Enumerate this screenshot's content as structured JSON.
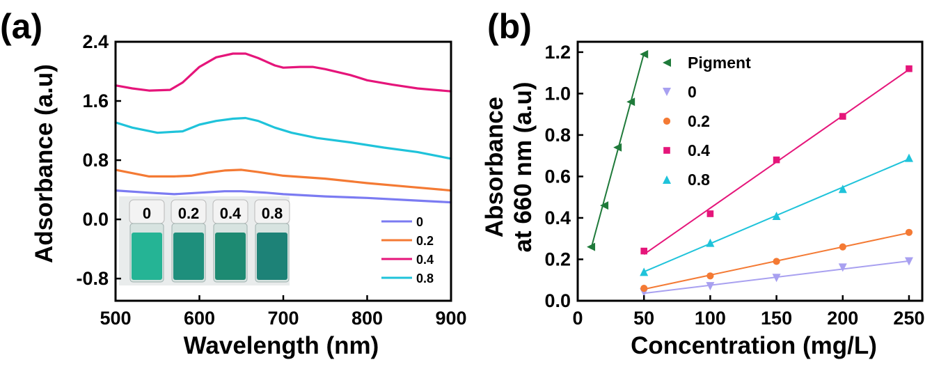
{
  "panels": {
    "a": {
      "label": "(a)"
    },
    "b": {
      "label": "(b)"
    }
  },
  "chart_data": [
    {
      "panel": "(a)",
      "type": "line",
      "xlabel": "Wavelength (nm)",
      "ylabel": "Adsorbance (a.u)",
      "xlim": [
        500,
        900
      ],
      "ylim": [
        -1.1,
        2.4
      ],
      "xticks": [
        500,
        600,
        700,
        800,
        900
      ],
      "yticks": [
        -0.8,
        0.0,
        0.8,
        1.6,
        2.4
      ],
      "ytick_labels": [
        "-0.8",
        "0.0",
        "0.8",
        "1.6",
        "2.4"
      ],
      "legend_position": "lower-right",
      "inset": {
        "type": "photo",
        "vial_labels": [
          "0",
          "0.2",
          "0.4",
          "0.8"
        ]
      },
      "series": [
        {
          "name": "0",
          "color": "#7b7bf2",
          "x": [
            500,
            540,
            570,
            600,
            630,
            650,
            680,
            700,
            750,
            800,
            850,
            900
          ],
          "y": [
            0.39,
            0.36,
            0.34,
            0.36,
            0.38,
            0.38,
            0.36,
            0.34,
            0.31,
            0.29,
            0.26,
            0.23
          ]
        },
        {
          "name": "0.2",
          "color": "#f47a34",
          "x": [
            500,
            540,
            570,
            590,
            610,
            630,
            650,
            670,
            700,
            750,
            800,
            850,
            900
          ],
          "y": [
            0.67,
            0.58,
            0.58,
            0.59,
            0.63,
            0.66,
            0.67,
            0.64,
            0.59,
            0.55,
            0.49,
            0.44,
            0.39
          ]
        },
        {
          "name": "0.4",
          "color": "#e5157a",
          "x": [
            500,
            520,
            540,
            565,
            580,
            600,
            620,
            640,
            655,
            670,
            690,
            700,
            720,
            735,
            750,
            780,
            800,
            830,
            860,
            900
          ],
          "y": [
            1.81,
            1.77,
            1.74,
            1.75,
            1.85,
            2.06,
            2.19,
            2.24,
            2.24,
            2.18,
            2.08,
            2.05,
            2.06,
            2.06,
            2.03,
            1.95,
            1.88,
            1.82,
            1.77,
            1.73
          ]
        },
        {
          "name": "0.8",
          "color": "#1fc3da",
          "x": [
            500,
            520,
            550,
            580,
            600,
            620,
            640,
            655,
            670,
            690,
            710,
            740,
            780,
            820,
            860,
            900
          ],
          "y": [
            1.31,
            1.24,
            1.17,
            1.19,
            1.28,
            1.33,
            1.36,
            1.37,
            1.33,
            1.24,
            1.17,
            1.1,
            1.04,
            0.97,
            0.91,
            0.82
          ]
        }
      ]
    },
    {
      "panel": "(b)",
      "type": "scatter",
      "xlabel": "Concentration (mg/L)",
      "ylabel_line1": "Absorbance",
      "ylabel_line2": "at 660 nm (a.u)",
      "xlim": [
        0,
        260
      ],
      "ylim": [
        0,
        1.25
      ],
      "xticks": [
        0,
        50,
        100,
        150,
        200,
        250
      ],
      "yticks": [
        0.0,
        0.2,
        0.4,
        0.6,
        0.8,
        1.0,
        1.2
      ],
      "ytick_labels": [
        "0.0",
        "0.2",
        "0.4",
        "0.6",
        "0.8",
        "1.0",
        "1.2"
      ],
      "legend_position": "top-left",
      "fit_lines": true,
      "series": [
        {
          "name": "Pigment",
          "color": "#1f7a3a",
          "marker": "triangle-left",
          "x": [
            10,
            20,
            30,
            40,
            50
          ],
          "y": [
            0.26,
            0.46,
            0.74,
            0.96,
            1.19
          ]
        },
        {
          "name": "0",
          "color": "#a8a0f0",
          "marker": "triangle-down",
          "x": [
            50,
            100,
            150,
            200,
            250
          ],
          "y": [
            0.04,
            0.07,
            0.11,
            0.16,
            0.19
          ]
        },
        {
          "name": "0.2",
          "color": "#f47a34",
          "marker": "circle",
          "x": [
            50,
            100,
            150,
            200,
            250
          ],
          "y": [
            0.06,
            0.12,
            0.19,
            0.26,
            0.33
          ]
        },
        {
          "name": "0.4",
          "color": "#e5157a",
          "marker": "square",
          "x": [
            50,
            100,
            150,
            200,
            250
          ],
          "y": [
            0.24,
            0.42,
            0.68,
            0.89,
            1.12
          ]
        },
        {
          "name": "0.8",
          "color": "#1fc3da",
          "marker": "triangle-up",
          "x": [
            50,
            100,
            150,
            200,
            250
          ],
          "y": [
            0.14,
            0.28,
            0.41,
            0.54,
            0.69
          ]
        }
      ]
    }
  ]
}
